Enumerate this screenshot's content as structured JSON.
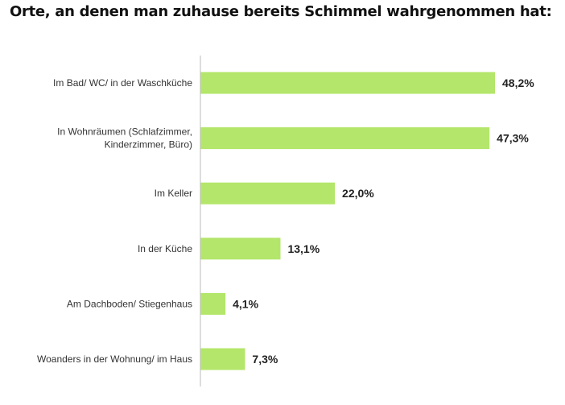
{
  "chart_data": {
    "type": "bar",
    "orientation": "horizontal",
    "title": "Orte, an denen man zuhause bereits Schimmel wahrgenommen hat:",
    "categories": [
      [
        "Im Bad/ WC/ in der Waschküche"
      ],
      [
        "In Wohnräumen (Schlafzimmer,",
        "Kinderzimmer, Büro)"
      ],
      [
        "Im Keller"
      ],
      [
        "In der Küche"
      ],
      [
        "Am Dachboden/ Stiegenhaus"
      ],
      [
        "Woanders in der Wohnung/ im Haus"
      ]
    ],
    "values": [
      48.2,
      47.3,
      22.0,
      13.1,
      4.1,
      7.3
    ],
    "data_labels": [
      "48,2%",
      "47,3%",
      "22,0%",
      "13,1%",
      "4,1%",
      "7,3%"
    ],
    "unit": "%",
    "xlim": [
      0,
      48.2
    ],
    "grid": false,
    "bar_color": "#b3e66a"
  }
}
